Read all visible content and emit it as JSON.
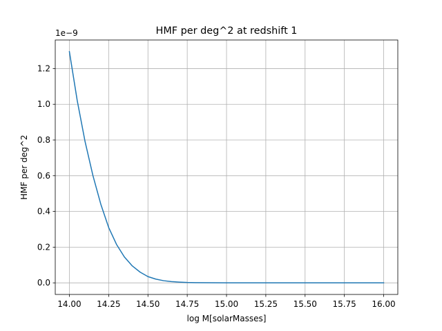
{
  "chart_data": {
    "type": "line",
    "title": "HMF per deg^2 at redshift 1",
    "xlabel": "log M[solarMasses]",
    "ylabel": "HMF per deg^2",
    "y_offset_label": "1e−9",
    "xlim": [
      13.91,
      16.09
    ],
    "ylim": [
      -6.5e-11,
      1.36e-09
    ],
    "xticks": [
      14.0,
      14.25,
      14.5,
      14.75,
      15.0,
      15.25,
      15.5,
      15.75,
      16.0
    ],
    "xtick_labels": [
      "14.00",
      "14.25",
      "14.50",
      "14.75",
      "15.00",
      "15.25",
      "15.50",
      "15.75",
      "16.00"
    ],
    "yticks": [
      0.0,
      2e-10,
      4e-10,
      6e-10,
      8e-10,
      1e-09,
      1.2e-09
    ],
    "ytick_labels": [
      "0.0",
      "0.2",
      "0.4",
      "0.6",
      "0.8",
      "1.0",
      "1.2"
    ],
    "grid": true,
    "series": [
      {
        "color": "#1f77b4",
        "x": [
          14.0,
          14.05,
          14.1,
          14.15,
          14.2,
          14.25,
          14.3,
          14.35,
          14.4,
          14.45,
          14.5,
          14.55,
          14.6,
          14.65,
          14.7,
          14.75,
          14.8,
          14.9,
          15.0,
          15.25,
          15.5,
          15.75,
          16.0
        ],
        "y": [
          1.295e-09,
          1.02e-09,
          7.9e-10,
          6e-10,
          4.4e-10,
          3.1e-10,
          2.15e-10,
          1.45e-10,
          9.5e-11,
          6e-11,
          3.5e-11,
          2.1e-11,
          1.2e-11,
          7e-12,
          4e-12,
          2e-12,
          1e-12,
          4e-13,
          1e-13,
          0.0,
          0.0,
          0.0,
          0.0
        ]
      }
    ]
  }
}
